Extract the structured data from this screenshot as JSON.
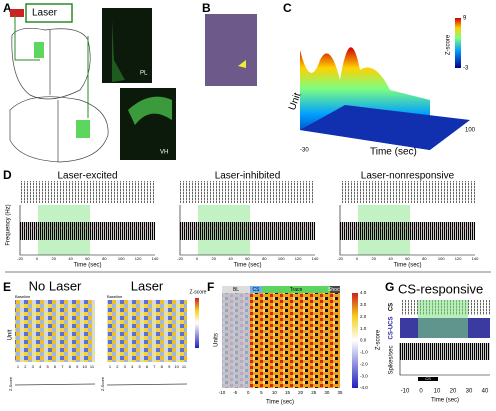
{
  "panel_a": {
    "letter": "A",
    "laser": "Laser",
    "image_labels": [
      "PL",
      "VH"
    ]
  },
  "panel_b": {
    "letter": "B"
  },
  "panel_c": {
    "letter": "C",
    "colorbar_title": "Z-score",
    "colorbar_ticks": [
      "9",
      "-3"
    ],
    "y_label": "Unit",
    "x_label": "Time (sec)",
    "x_ticks": [
      "-30",
      "100"
    ]
  },
  "panel_d": {
    "letter": "D",
    "y_label": "Frequency (Hz)",
    "x_ticks": [
      "-20",
      "0",
      "20",
      "40",
      "60",
      "80",
      "100",
      "120",
      "140"
    ],
    "subpanels": [
      {
        "title": "Laser-excited",
        "x_label": "Time (sec)"
      },
      {
        "title": "Laser-inhibited",
        "x_label": "Time (sec)"
      },
      {
        "title": "Laser-nonresponsive",
        "x_label": "Time (sec)"
      }
    ]
  },
  "panel_e": {
    "letter": "E",
    "y_label": "Unit",
    "colorbar_title": "Z-score",
    "z_label": "Z-Score",
    "x_ticks": [
      "1",
      "2",
      "3",
      "4",
      "5",
      "6",
      "7",
      "8",
      "9",
      "10",
      "11"
    ],
    "subpanels": [
      {
        "title": "No Laser",
        "baseline": "Baseline"
      },
      {
        "title": "Laser",
        "baseline": "Baseline"
      }
    ]
  },
  "panel_f": {
    "letter": "F",
    "phases": [
      "BL",
      "CS",
      "Trace",
      "Shock"
    ],
    "y_label": "Units",
    "x_label": "Time (sec)",
    "x_ticks": [
      "-10",
      "-5",
      "0",
      "5",
      "10",
      "15",
      "20",
      "25",
      "30",
      "35"
    ],
    "colorbar_title": "Z-score",
    "colorbar_ticks": [
      "4.0",
      "3.0",
      "2.0",
      "1.0",
      "0.0",
      "-1.0",
      "-2.0",
      "-3.0",
      "-4.0"
    ]
  },
  "panel_g": {
    "letter": "G",
    "title": "CS-responsive",
    "raster_labels": [
      "CS",
      "CS-UCS"
    ],
    "y_label": "Spikes/sec",
    "x_label": "Time (sec)",
    "x_ticks": [
      "-10",
      "0",
      "10",
      "20",
      "30",
      "40"
    ],
    "bar_label": "CS"
  }
}
